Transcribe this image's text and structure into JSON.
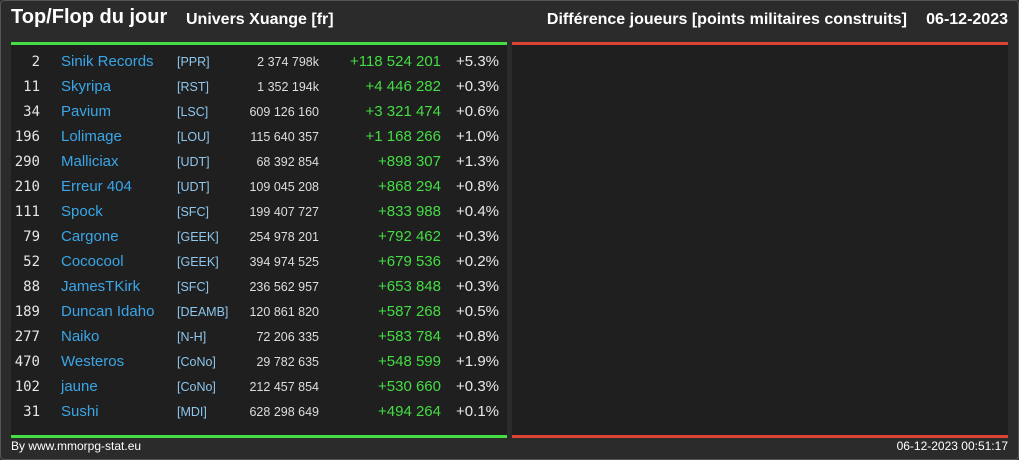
{
  "header": {
    "title": "Top/Flop du jour",
    "universe": "Univers Xuange [fr]",
    "metric": "Différence joueurs [points militaires construits]",
    "date": "06-12-2023"
  },
  "colors": {
    "positive": "#44dd44",
    "negative": "#dd4433",
    "name": "#3aa6e8"
  },
  "top_rows": [
    {
      "rank": "2",
      "name": "Sinik Records",
      "tag": "[PPR]",
      "total": "2 374 798k",
      "diff": "+118 524 201",
      "pct": "+5.3%"
    },
    {
      "rank": "11",
      "name": "Skyripa",
      "tag": "[RST]",
      "total": "1 352 194k",
      "diff": "+4 446 282",
      "pct": "+0.3%"
    },
    {
      "rank": "34",
      "name": "Pavium",
      "tag": "[LSC]",
      "total": "609 126 160",
      "diff": "+3 321 474",
      "pct": "+0.6%"
    },
    {
      "rank": "196",
      "name": "Lolimage",
      "tag": "[LOU]",
      "total": "115 640 357",
      "diff": "+1 168 266",
      "pct": "+1.0%"
    },
    {
      "rank": "290",
      "name": "Malliciax",
      "tag": "[UDT]",
      "total": "68 392 854",
      "diff": "+898 307",
      "pct": "+1.3%"
    },
    {
      "rank": "210",
      "name": "Erreur 404",
      "tag": "[UDT]",
      "total": "109 045 208",
      "diff": "+868 294",
      "pct": "+0.8%"
    },
    {
      "rank": "111",
      "name": "Spock",
      "tag": "[SFC]",
      "total": "199 407 727",
      "diff": "+833 988",
      "pct": "+0.4%"
    },
    {
      "rank": "79",
      "name": "Cargone",
      "tag": "[GEEK]",
      "total": "254 978 201",
      "diff": "+792 462",
      "pct": "+0.3%"
    },
    {
      "rank": "52",
      "name": "Cococool",
      "tag": "[GEEK]",
      "total": "394 974 525",
      "diff": "+679 536",
      "pct": "+0.2%"
    },
    {
      "rank": "88",
      "name": "JamesTKirk",
      "tag": "[SFC]",
      "total": "236 562 957",
      "diff": "+653 848",
      "pct": "+0.3%"
    },
    {
      "rank": "189",
      "name": "Duncan Idaho",
      "tag": "[DEAMB]",
      "total": "120 861 820",
      "diff": "+587 268",
      "pct": "+0.5%"
    },
    {
      "rank": "277",
      "name": "Naiko",
      "tag": "[N-H]",
      "total": "72 206 335",
      "diff": "+583 784",
      "pct": "+0.8%"
    },
    {
      "rank": "470",
      "name": "Westeros",
      "tag": "[CoNo]",
      "total": "29 782 635",
      "diff": "+548 599",
      "pct": "+1.9%"
    },
    {
      "rank": "102",
      "name": "jaune",
      "tag": "[CoNo]",
      "total": "212 457 854",
      "diff": "+530 660",
      "pct": "+0.3%"
    },
    {
      "rank": "31",
      "name": "Sushi",
      "tag": "[MDI]",
      "total": "628 298 649",
      "diff": "+494 264",
      "pct": "+0.1%"
    }
  ],
  "footer": {
    "source": "By www.mmorpg-stat.eu",
    "timestamp": "06-12-2023 00:51:17"
  }
}
